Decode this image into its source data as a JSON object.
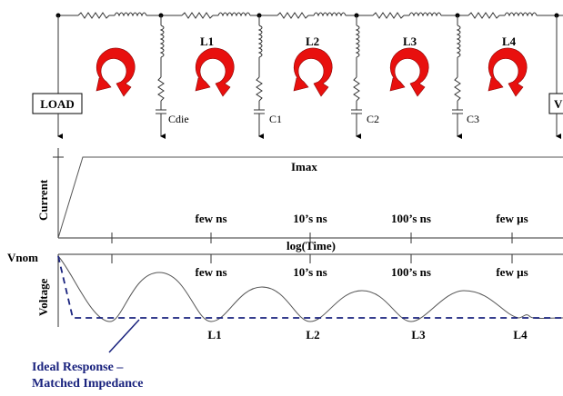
{
  "circuit": {
    "load_label": "LOAD",
    "vrm_label": "V",
    "capacitors": [
      "Cdie",
      "C1",
      "C2",
      "C3"
    ],
    "loops": [
      "L1",
      "L2",
      "L3",
      "L4"
    ]
  },
  "current_plot": {
    "ylabel": "Current",
    "level_label": "Imax",
    "xlabel": "log(Time)",
    "time_labels": [
      "few ns",
      "10’s ns",
      "100’s ns",
      "few µs"
    ]
  },
  "voltage_plot": {
    "ylabel": "Voltage",
    "vnom_label": "Vnom",
    "time_labels": [
      "few ns",
      "10’s ns",
      "100’s ns",
      "few µs"
    ],
    "dip_labels": [
      "L1",
      "L2",
      "L3",
      "L4"
    ]
  },
  "annotation": {
    "line1": "Ideal Response –",
    "line2": "Matched Impedance"
  },
  "colors": {
    "arrow": "#e8100e",
    "ideal": "#1a237e",
    "line": "#555555"
  }
}
